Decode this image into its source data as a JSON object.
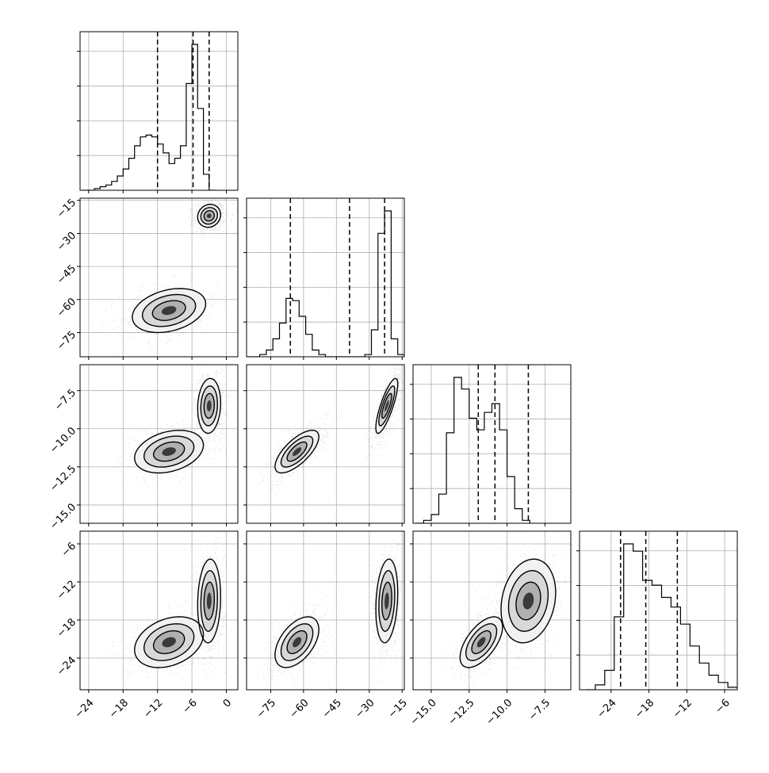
{
  "chart_data": {
    "type": "corner",
    "parameters": 4,
    "grid": true,
    "axis_ticks": [
      [
        -24,
        -18,
        -12,
        -6,
        0
      ],
      [
        -75,
        -60,
        -45,
        -30,
        -15
      ],
      [
        -15.0,
        -12.5,
        -10.0,
        -7.5
      ],
      [
        -24,
        -18,
        -12,
        -6
      ]
    ],
    "axis_tick_labels": [
      [
        "−24",
        "−18",
        "−12",
        "−6",
        "0"
      ],
      [
        "−75",
        "−60",
        "−45",
        "−30",
        "−15"
      ],
      [
        "−15.0",
        "−12.5",
        "−10.0",
        "−7.5"
      ],
      [
        "−24",
        "−18",
        "−12",
        "−6"
      ]
    ],
    "axis_ranges": [
      [
        -25.5,
        2.0
      ],
      [
        -86.0,
        -14.0
      ],
      [
        -16.2,
        -5.8
      ],
      [
        -29.0,
        -4.0
      ]
    ],
    "marginals": [
      {
        "bin_start": -25.0,
        "bin_width": 1.0,
        "counts": [
          0,
          0,
          1,
          2,
          3,
          5,
          8,
          12,
          18,
          25,
          30,
          31,
          30,
          26,
          21,
          15,
          18,
          25,
          60,
          82,
          46,
          9,
          0
        ],
        "quantiles": [
          -12.0,
          -5.8,
          -3.0
        ]
      },
      {
        "bin_start": -86.0,
        "bin_width": 3.0,
        "counts": [
          0,
          0,
          1,
          3,
          8,
          15,
          26,
          25,
          18,
          10,
          3,
          1,
          0,
          0,
          0,
          0,
          0,
          0,
          1,
          12,
          55,
          65,
          8,
          1
        ],
        "quantiles": [
          -66.0,
          -39.0,
          -23.0
        ]
      },
      {
        "bin_start": -16.0,
        "bin_width": 0.5,
        "counts": [
          0,
          1,
          3,
          10,
          31,
          50,
          46,
          36,
          32,
          38,
          41,
          32,
          16,
          5,
          1
        ],
        "quantiles": [
          -11.9,
          -10.8,
          -8.6
        ]
      },
      {
        "bin_start": -28.0,
        "bin_width": 1.5,
        "counts": [
          0,
          2,
          8,
          30,
          60,
          57,
          45,
          43,
          38,
          34,
          27,
          18,
          11,
          6,
          3,
          1
        ],
        "quantiles": [
          -22.5,
          -18.5,
          -13.5
        ]
      }
    ],
    "joint": [
      {
        "row": 1,
        "col": 0,
        "modes": [
          {
            "x": -3.0,
            "y": -22.0,
            "sx": 1.0,
            "sy": 2.6,
            "rho": 0.1,
            "weight": 0.55
          },
          {
            "x": -10.0,
            "y": -65.0,
            "sx": 3.2,
            "sy": 5.0,
            "rho": 0.3,
            "weight": 0.45
          }
        ]
      },
      {
        "row": 2,
        "col": 0,
        "modes": [
          {
            "x": -3.0,
            "y": -8.5,
            "sx": 1.0,
            "sy": 0.9,
            "rho": 0.1,
            "weight": 0.55
          },
          {
            "x": -10.0,
            "y": -11.5,
            "sx": 3.0,
            "sy": 0.7,
            "rho": 0.3,
            "weight": 0.45
          }
        ]
      },
      {
        "row": 2,
        "col": 1,
        "modes": [
          {
            "x": -22.0,
            "y": -8.5,
            "sx": 2.5,
            "sy": 0.9,
            "rho": 0.8,
            "weight": 0.55
          },
          {
            "x": -63.0,
            "y": -11.5,
            "sx": 5.0,
            "sy": 0.7,
            "rho": 0.7,
            "weight": 0.45
          }
        ]
      },
      {
        "row": 3,
        "col": 0,
        "modes": [
          {
            "x": -3.0,
            "y": -15.0,
            "sx": 1.0,
            "sy": 3.3,
            "rho": 0.1,
            "weight": 0.55
          },
          {
            "x": -10.0,
            "y": -21.5,
            "sx": 3.0,
            "sy": 2.0,
            "rho": 0.3,
            "weight": 0.45
          }
        ]
      },
      {
        "row": 3,
        "col": 1,
        "modes": [
          {
            "x": -22.0,
            "y": -15.0,
            "sx": 2.5,
            "sy": 3.3,
            "rho": 0.2,
            "weight": 0.55
          },
          {
            "x": -63.0,
            "y": -21.5,
            "sx": 5.0,
            "sy": 2.0,
            "rho": 0.5,
            "weight": 0.45
          }
        ]
      },
      {
        "row": 3,
        "col": 2,
        "modes": [
          {
            "x": -8.6,
            "y": -15.0,
            "sx": 0.9,
            "sy": 3.3,
            "rho": 0.2,
            "weight": 0.55
          },
          {
            "x": -11.7,
            "y": -21.5,
            "sx": 0.7,
            "sy": 2.0,
            "rho": 0.6,
            "weight": 0.45
          }
        ]
      }
    ]
  }
}
